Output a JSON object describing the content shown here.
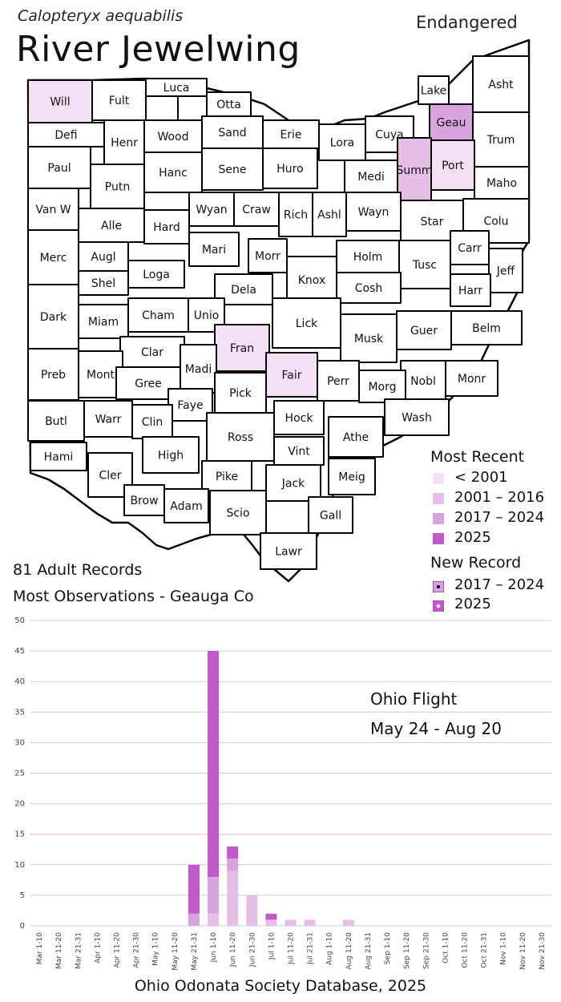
{
  "species": {
    "scientific_name": "Calopteryx aequabilis",
    "common_name": "River Jewelwing",
    "status": "Endangered"
  },
  "colors": {
    "lt2001": "#f4e0f4",
    "y2001_2016": "#e6bee6",
    "y2017_2024": "#d9a3dd",
    "y2025": "#c159c7",
    "none": "#ffffff"
  },
  "map": {
    "counties": [
      {
        "name": "Will",
        "category": "lt2001"
      },
      {
        "name": "Fult",
        "category": "none"
      },
      {
        "name": "Luca",
        "category": "none"
      },
      {
        "name": "Otta",
        "category": "none"
      },
      {
        "name": "Defi",
        "category": "none"
      },
      {
        "name": "Henr",
        "category": "none"
      },
      {
        "name": "Wood",
        "category": "none"
      },
      {
        "name": "Sand",
        "category": "none"
      },
      {
        "name": "Erie",
        "category": "none"
      },
      {
        "name": "Lora",
        "category": "none"
      },
      {
        "name": "Cuya",
        "category": "none"
      },
      {
        "name": "Lake",
        "category": "none"
      },
      {
        "name": "Asht",
        "category": "none"
      },
      {
        "name": "Geau",
        "category": "y2017_2024"
      },
      {
        "name": "Trum",
        "category": "none"
      },
      {
        "name": "Paul",
        "category": "none"
      },
      {
        "name": "Putn",
        "category": "none"
      },
      {
        "name": "Hanc",
        "category": "none"
      },
      {
        "name": "Sene",
        "category": "none"
      },
      {
        "name": "Huro",
        "category": "none"
      },
      {
        "name": "Medi",
        "category": "none"
      },
      {
        "name": "Summ",
        "category": "y2001_2016"
      },
      {
        "name": "Port",
        "category": "lt2001"
      },
      {
        "name": "Maho",
        "category": "none"
      },
      {
        "name": "Van W",
        "category": "none"
      },
      {
        "name": "Alle",
        "category": "none"
      },
      {
        "name": "Hard",
        "category": "none"
      },
      {
        "name": "Wyan",
        "category": "none"
      },
      {
        "name": "Craw",
        "category": "none"
      },
      {
        "name": "Rich",
        "category": "none"
      },
      {
        "name": "Ashl",
        "category": "none"
      },
      {
        "name": "Wayn",
        "category": "none"
      },
      {
        "name": "Star",
        "category": "none"
      },
      {
        "name": "Colu",
        "category": "none"
      },
      {
        "name": "Merc",
        "category": "none"
      },
      {
        "name": "Augl",
        "category": "none"
      },
      {
        "name": "Mari",
        "category": "none"
      },
      {
        "name": "Morr",
        "category": "none"
      },
      {
        "name": "Holm",
        "category": "none"
      },
      {
        "name": "Carr",
        "category": "none"
      },
      {
        "name": "Tusc",
        "category": "none"
      },
      {
        "name": "Jeff",
        "category": "none"
      },
      {
        "name": "Shel",
        "category": "none"
      },
      {
        "name": "Loga",
        "category": "none"
      },
      {
        "name": "Dela",
        "category": "none"
      },
      {
        "name": "Knox",
        "category": "none"
      },
      {
        "name": "Cosh",
        "category": "none"
      },
      {
        "name": "Harr",
        "category": "none"
      },
      {
        "name": "Dark",
        "category": "none"
      },
      {
        "name": "Cham",
        "category": "none"
      },
      {
        "name": "Unio",
        "category": "none"
      },
      {
        "name": "Lick",
        "category": "none"
      },
      {
        "name": "Miam",
        "category": "none"
      },
      {
        "name": "Musk",
        "category": "none"
      },
      {
        "name": "Guer",
        "category": "none"
      },
      {
        "name": "Belm",
        "category": "none"
      },
      {
        "name": "Fran",
        "category": "lt2001"
      },
      {
        "name": "Clar",
        "category": "none"
      },
      {
        "name": "Fair",
        "category": "lt2001"
      },
      {
        "name": "Preb",
        "category": "none"
      },
      {
        "name": "Mont",
        "category": "none"
      },
      {
        "name": "Madi",
        "category": "none"
      },
      {
        "name": "Perr",
        "category": "none"
      },
      {
        "name": "Nobl",
        "category": "none"
      },
      {
        "name": "Monr",
        "category": "none"
      },
      {
        "name": "Gree",
        "category": "none"
      },
      {
        "name": "Pick",
        "category": "none"
      },
      {
        "name": "Morg",
        "category": "none"
      },
      {
        "name": "Faye",
        "category": "none"
      },
      {
        "name": "Butl",
        "category": "none"
      },
      {
        "name": "Warr",
        "category": "none"
      },
      {
        "name": "Clin",
        "category": "none"
      },
      {
        "name": "Wash",
        "category": "none"
      },
      {
        "name": "Hock",
        "category": "none"
      },
      {
        "name": "Ross",
        "category": "none"
      },
      {
        "name": "Athe",
        "category": "none"
      },
      {
        "name": "Hami",
        "category": "none"
      },
      {
        "name": "Vint",
        "category": "none"
      },
      {
        "name": "High",
        "category": "none"
      },
      {
        "name": "Cler",
        "category": "none"
      },
      {
        "name": "Meig",
        "category": "none"
      },
      {
        "name": "Pike",
        "category": "none"
      },
      {
        "name": "Jack",
        "category": "none"
      },
      {
        "name": "Brow",
        "category": "none"
      },
      {
        "name": "Adam",
        "category": "none"
      },
      {
        "name": "Gall",
        "category": "none"
      },
      {
        "name": "Scio",
        "category": "none"
      },
      {
        "name": "Lawr",
        "category": "none"
      }
    ]
  },
  "legend": {
    "title": "Most Recent",
    "items": [
      {
        "label": "< 2001",
        "color": "#f4e0f4"
      },
      {
        "label": "2001 – 2016",
        "color": "#e6bee6"
      },
      {
        "label": "2017 – 2024",
        "color": "#d9a3dd"
      },
      {
        "label": "2025",
        "color": "#c159c7"
      }
    ],
    "new_record_title": "New Record",
    "new_record_items": [
      {
        "label": "2017 – 2024"
      },
      {
        "label": "2025"
      }
    ]
  },
  "summary": {
    "records": "81 Adult Records",
    "most_observations": "Most Observations - Geauga Co"
  },
  "flight": {
    "title": "Ohio Flight",
    "range": "May 24 - Aug 20"
  },
  "footer": "Ohio Odonata Society Database, 2025",
  "chart_data": {
    "type": "bar",
    "stacked": true,
    "categories": [
      "Mar 1-10",
      "Mar 11-20",
      "Mar 21-31",
      "Apr 1-10",
      "Apr 11-20",
      "Apr 21-30",
      "May 1-10",
      "May 11-20",
      "May 21-31",
      "Jun 1-10",
      "Jun 11-20",
      "Jun 21-30",
      "Jul 1-10",
      "Jul 11-20",
      "Jul 21-31",
      "Aug 1-10",
      "Aug 11-20",
      "Aug 21-31",
      "Sep 1-10",
      "Sep 11-20",
      "Sep 21-30",
      "Oct 1-10",
      "Oct 11-20",
      "Oct 21-31",
      "Nov 1-10",
      "Nov 11-20",
      "Nov 21-30"
    ],
    "series": [
      {
        "color": "#e6bee6",
        "values": [
          0,
          0,
          0,
          0,
          0,
          0,
          0,
          0,
          0,
          2,
          9,
          5,
          1,
          1,
          1,
          0,
          1,
          0,
          0,
          0,
          0,
          0,
          0,
          0,
          0,
          0,
          0
        ]
      },
      {
        "color": "#d9a3dd",
        "values": [
          0,
          0,
          0,
          0,
          0,
          0,
          0,
          0,
          2,
          6,
          2,
          0,
          0,
          0,
          0,
          0,
          0,
          0,
          0,
          0,
          0,
          0,
          0,
          0,
          0,
          0,
          0
        ]
      },
      {
        "color": "#c159c7",
        "values": [
          0,
          0,
          0,
          0,
          0,
          0,
          0,
          0,
          8,
          37,
          2,
          0,
          1,
          0,
          0,
          0,
          0,
          0,
          0,
          0,
          0,
          0,
          0,
          0,
          0,
          0,
          0
        ]
      }
    ],
    "ylim": [
      0,
      50
    ],
    "yticks": [
      0,
      5,
      10,
      15,
      20,
      25,
      30,
      35,
      40,
      45,
      50
    ],
    "grid": true
  }
}
